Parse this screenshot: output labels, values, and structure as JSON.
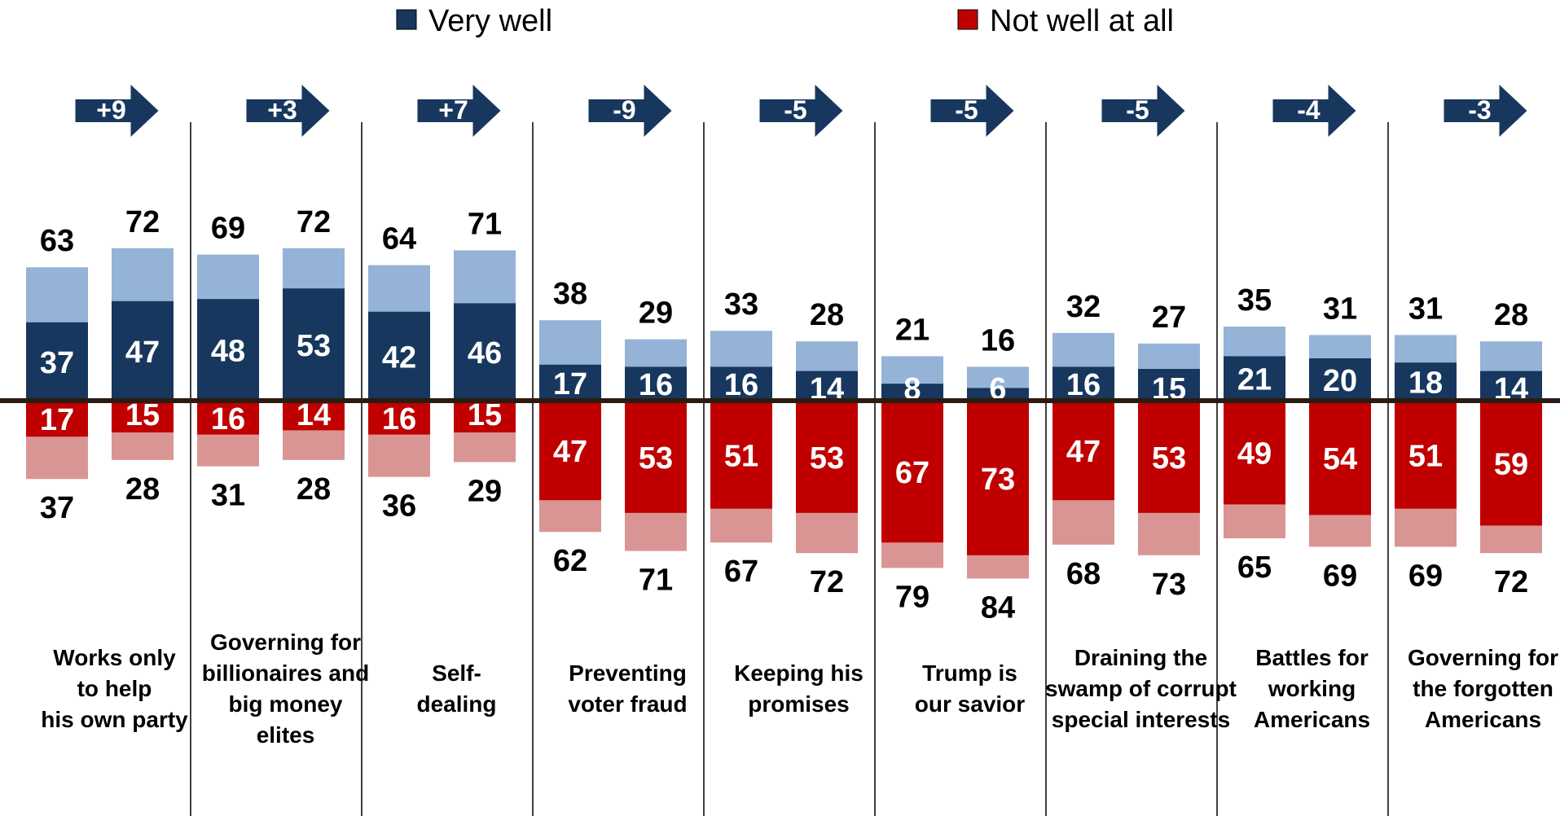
{
  "legend": [
    {
      "label": "Very well",
      "color": "#17375e"
    },
    {
      "label": "Not well at all",
      "color": "#c00000"
    }
  ],
  "colors": {
    "very_well_strong": "#17375e",
    "very_well_light": "#95b3d7",
    "not_well_strong": "#c00000",
    "not_well_light": "#d99594",
    "arrow": "#17375e",
    "baseline": "#2b1b10"
  },
  "chart_data": {
    "type": "bar",
    "subtype": "diverging stacked bar",
    "series": [
      "Very well",
      "Not well at all"
    ],
    "groups": [
      {
        "label": [
          "Works only",
          "to help",
          "his own party"
        ],
        "change": "+9",
        "bars": [
          {
            "very_total": 63,
            "very_strong": 37,
            "not_strong": 17,
            "not_total": 37
          },
          {
            "very_total": 72,
            "very_strong": 47,
            "not_strong": 15,
            "not_total": 28
          }
        ]
      },
      {
        "label": [
          "Governing for",
          "billionaires and",
          "big money",
          "elites"
        ],
        "change": "+3",
        "bars": [
          {
            "very_total": 69,
            "very_strong": 48,
            "not_strong": 16,
            "not_total": 31
          },
          {
            "very_total": 72,
            "very_strong": 53,
            "not_strong": 14,
            "not_total": 28
          }
        ]
      },
      {
        "label": [
          "Self-",
          "dealing"
        ],
        "change": "+7",
        "bars": [
          {
            "very_total": 64,
            "very_strong": 42,
            "not_strong": 16,
            "not_total": 36
          },
          {
            "very_total": 71,
            "very_strong": 46,
            "not_strong": 15,
            "not_total": 29
          }
        ]
      },
      {
        "label": [
          "Preventing",
          "voter fraud"
        ],
        "change": "-9",
        "bars": [
          {
            "very_total": 38,
            "very_strong": 17,
            "not_strong": 47,
            "not_total": 62
          },
          {
            "very_total": 29,
            "very_strong": 16,
            "not_strong": 53,
            "not_total": 71
          }
        ]
      },
      {
        "label": [
          "Keeping his",
          "promises"
        ],
        "change": "-5",
        "bars": [
          {
            "very_total": 33,
            "very_strong": 16,
            "not_strong": 51,
            "not_total": 67
          },
          {
            "very_total": 28,
            "very_strong": 14,
            "not_strong": 53,
            "not_total": 72
          }
        ]
      },
      {
        "label": [
          "Trump is",
          "our savior"
        ],
        "change": "-5",
        "bars": [
          {
            "very_total": 21,
            "very_strong": 8,
            "not_strong": 67,
            "not_total": 79
          },
          {
            "very_total": 16,
            "very_strong": 6,
            "not_strong": 73,
            "not_total": 84
          }
        ]
      },
      {
        "label": [
          "Draining the",
          "swamp of corrupt",
          "special interests"
        ],
        "change": "-5",
        "bars": [
          {
            "very_total": 32,
            "very_strong": 16,
            "not_strong": 47,
            "not_total": 68
          },
          {
            "very_total": 27,
            "very_strong": 15,
            "not_strong": 53,
            "not_total": 73
          }
        ]
      },
      {
        "label": [
          "Battles for",
          "working",
          "Americans"
        ],
        "change": "-4",
        "bars": [
          {
            "very_total": 35,
            "very_strong": 21,
            "not_strong": 49,
            "not_total": 65
          },
          {
            "very_total": 31,
            "very_strong": 20,
            "not_strong": 54,
            "not_total": 69
          }
        ]
      },
      {
        "label": [
          "Governing for",
          "the forgotten",
          "Americans"
        ],
        "change": "-3",
        "bars": [
          {
            "very_total": 31,
            "very_strong": 18,
            "not_strong": 51,
            "not_total": 69
          },
          {
            "very_total": 28,
            "very_strong": 14,
            "not_strong": 59,
            "not_total": 72
          }
        ]
      }
    ]
  }
}
